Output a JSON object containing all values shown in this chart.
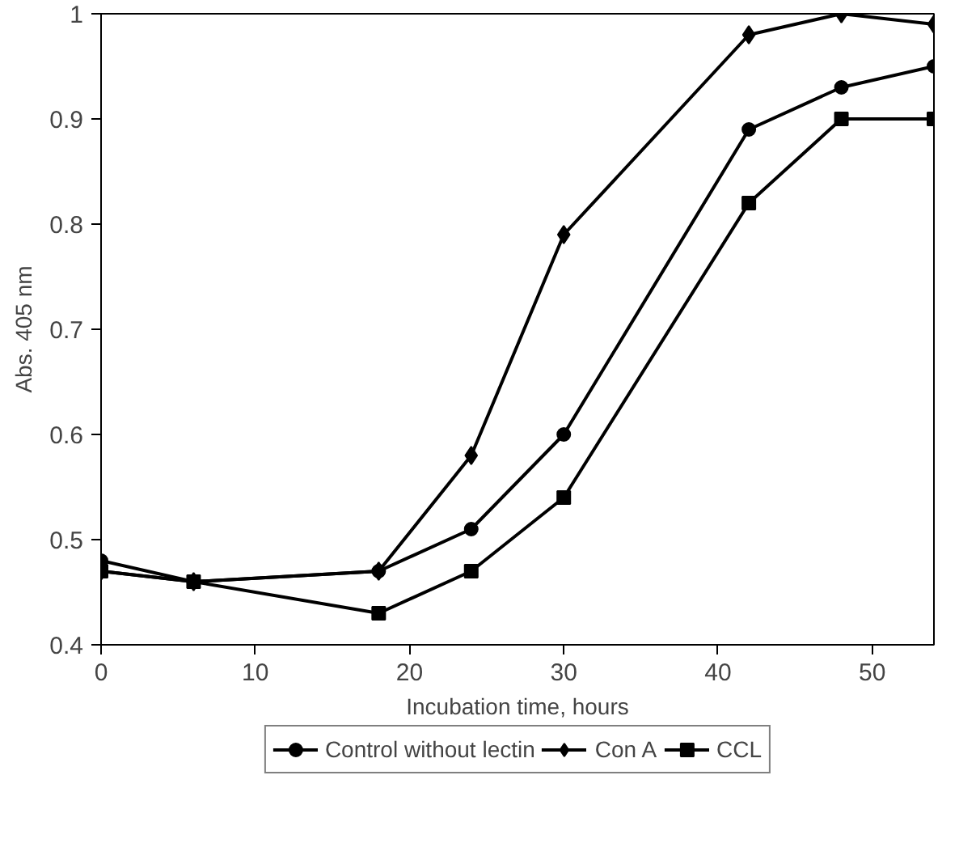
{
  "chart_data": {
    "type": "line",
    "xlabel": "Incubation time, hours",
    "ylabel": "Abs. 405 nm",
    "x": [
      0,
      6,
      18,
      24,
      30,
      42,
      48,
      54
    ],
    "series": [
      {
        "name": "Control without lectin",
        "color": "#000000",
        "marker": "circle",
        "values": [
          0.48,
          0.46,
          0.47,
          0.51,
          0.6,
          0.89,
          0.93,
          0.95
        ]
      },
      {
        "name": "Con A",
        "color": "#000000",
        "marker": "diamond",
        "values": [
          0.47,
          0.46,
          0.47,
          0.58,
          0.79,
          0.98,
          1.0,
          0.99
        ]
      },
      {
        "name": "CCL",
        "color": "#000000",
        "marker": "square",
        "values": [
          0.47,
          0.46,
          0.43,
          0.47,
          0.54,
          0.82,
          0.9,
          0.9
        ]
      }
    ],
    "xlim": [
      0,
      54
    ],
    "ylim": [
      0.4,
      1.0
    ],
    "xticks": [
      0,
      10,
      20,
      30,
      40,
      50
    ],
    "yticks": [
      0.4,
      0.5,
      0.6,
      0.7,
      0.8,
      0.9,
      1
    ],
    "grid": false,
    "legend": "bottom",
    "line_style": "solid"
  }
}
